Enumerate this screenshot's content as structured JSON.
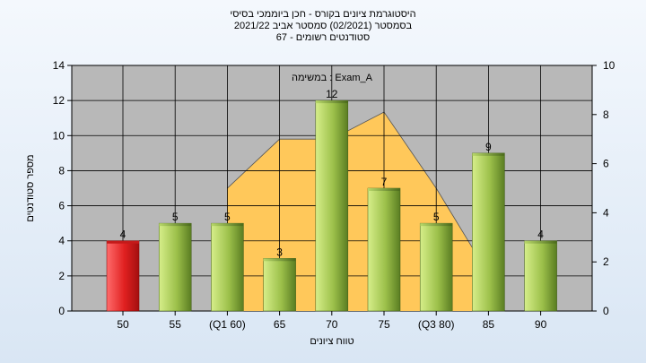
{
  "chart_data": {
    "type": "bar",
    "title_lines": [
      "היסטוגרמת ציונים בקורס - חכן ביוממכי בסיסי",
      "בסמסטר  (02/2021)  סמסטר אביב 2021/22",
      "סטודנטים רשומים - 67"
    ],
    "subtitle": "במשימה : Exam_A",
    "xlabel": "טווח ציונים",
    "ylabel": "מספר סטודנטים",
    "categories": [
      "50",
      "55",
      "(Q1 60)",
      "65",
      "70",
      "75",
      "(Q3 80)",
      "85",
      "90"
    ],
    "values": [
      4,
      5,
      5,
      3,
      12,
      7,
      5,
      9,
      4
    ],
    "bar_labels": [
      "4",
      "5",
      "5",
      "3",
      "12",
      "7",
      "5",
      "9",
      "4"
    ],
    "highlight_index": 0,
    "ylim": [
      0,
      14
    ],
    "yticks": [
      "0",
      "2",
      "4",
      "6",
      "8",
      "10",
      "12",
      "14"
    ],
    "y2lim": [
      0,
      10
    ],
    "y2ticks": [
      "0",
      "2",
      "4",
      "6",
      "8",
      "10"
    ],
    "overlay_area": {
      "x": [
        "(Q1 60)",
        "65",
        "70",
        "75",
        "(Q3 80)",
        "85"
      ],
      "y2": [
        5,
        7,
        7,
        8.1,
        5,
        1.5
      ]
    },
    "grid": true,
    "colors": {
      "bar_green_light": "#d6ee8a",
      "bar_green_dark": "#5a7d22",
      "bar_red_light": "#ff6b6b",
      "bar_red_dark": "#a30f0f",
      "overlay": "#ffc85a",
      "plot_bg": "#b8b8b8"
    }
  }
}
